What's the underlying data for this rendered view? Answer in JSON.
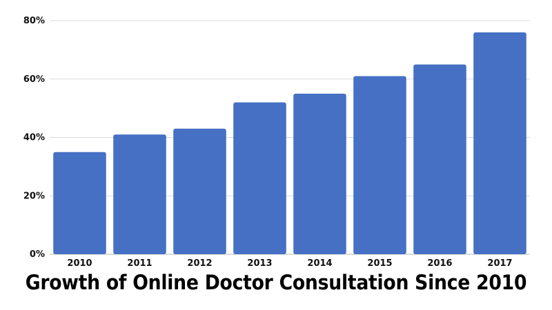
{
  "chart_data": {
    "type": "bar",
    "title": "Growth of Online Doctor Consultation Since 2010",
    "xlabel": "",
    "ylabel": "",
    "categories": [
      "2010",
      "2011",
      "2012",
      "2013",
      "2014",
      "2015",
      "2016",
      "2017"
    ],
    "values": [
      35,
      41,
      43,
      52,
      55,
      61,
      65,
      76
    ],
    "unit": "%",
    "ylim": [
      0,
      80
    ],
    "yticks": [
      "0%",
      "20%",
      "40%",
      "60%",
      "80%"
    ],
    "grid": true,
    "legend": "none",
    "bar_color": "#4570c4"
  }
}
